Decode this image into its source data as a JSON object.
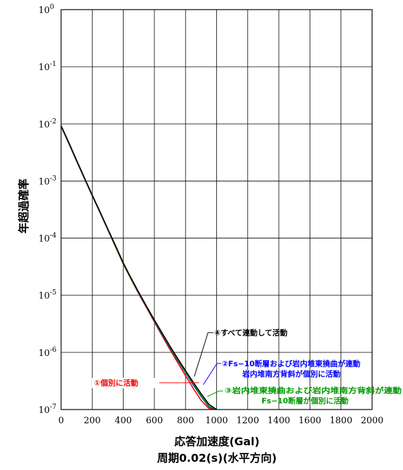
{
  "chart_data": {
    "type": "line",
    "xlabel": "応答加速度(Gal)",
    "xlabel2": "周期0.02(s)(水平方向)",
    "ylabel": "年超過確率",
    "xlim": [
      0,
      2000
    ],
    "ylim": [
      1e-07,
      1
    ],
    "yscale": "log",
    "grid": true,
    "x_ticks": [
      "0",
      "200",
      "400",
      "600",
      "800",
      "1000",
      "1200",
      "1400",
      "1600",
      "1800",
      "2000"
    ],
    "y_ticks": [
      {
        "base": "10",
        "exp": "0"
      },
      {
        "base": "10",
        "exp": "-1"
      },
      {
        "base": "10",
        "exp": "-2"
      },
      {
        "base": "10",
        "exp": "-3"
      },
      {
        "base": "10",
        "exp": "-4"
      },
      {
        "base": "10",
        "exp": "-5"
      },
      {
        "base": "10",
        "exp": "-6"
      },
      {
        "base": "10",
        "exp": "-7"
      }
    ],
    "series": [
      {
        "color": "#ff0000",
        "x": [
          0,
          50,
          100,
          150,
          200,
          250,
          300,
          350,
          400,
          450,
          500,
          550,
          600,
          650,
          700,
          750,
          800,
          850,
          900,
          950,
          985
        ],
        "y": [
          0.009,
          0.0045,
          0.0022,
          0.0011,
          0.00055,
          0.00028,
          0.00014,
          7e-05,
          3.5e-05,
          1.9e-05,
          1.05e-05,
          6e-06,
          3.4e-06,
          1.95e-06,
          1.12e-06,
          6.6e-07,
          3.9e-07,
          2.35e-07,
          1.45e-07,
          1.05e-07,
          1e-07
        ]
      },
      {
        "color": "#0000ff",
        "x": [
          0,
          50,
          100,
          150,
          200,
          250,
          300,
          350,
          400,
          450,
          500,
          550,
          600,
          650,
          700,
          750,
          800,
          850,
          900,
          950,
          990
        ],
        "y": [
          0.0092,
          0.0046,
          0.00225,
          0.00112,
          0.00056,
          0.000285,
          0.000143,
          7.2e-05,
          3.6e-05,
          1.95e-05,
          1.08e-05,
          6.2e-06,
          3.55e-06,
          2.05e-06,
          1.2e-06,
          7.2e-07,
          4.4e-07,
          2.7e-07,
          1.7e-07,
          1.12e-07,
          1e-07
        ]
      },
      {
        "color": "#009900",
        "x": [
          0,
          50,
          100,
          150,
          200,
          250,
          300,
          350,
          400,
          450,
          500,
          550,
          600,
          650,
          700,
          750,
          800,
          850,
          900,
          950,
          995
        ],
        "y": [
          0.0092,
          0.0046,
          0.00225,
          0.00112,
          0.00056,
          0.000285,
          0.000143,
          7.2e-05,
          3.6e-05,
          1.95e-05,
          1.09e-05,
          6.25e-06,
          3.6e-06,
          2.1e-06,
          1.23e-06,
          7.4e-07,
          4.5e-07,
          2.8e-07,
          1.75e-07,
          1.15e-07,
          1e-07
        ]
      },
      {
        "color": "#000000",
        "x": [
          0,
          50,
          100,
          150,
          200,
          250,
          300,
          350,
          400,
          450,
          500,
          550,
          600,
          650,
          700,
          750,
          800,
          850,
          900,
          950,
          1000
        ],
        "y": [
          0.0093,
          0.0047,
          0.0023,
          0.00114,
          0.00057,
          0.00029,
          0.000146,
          7.4e-05,
          3.7e-05,
          2e-05,
          1.12e-05,
          6.4e-06,
          3.7e-06,
          2.18e-06,
          1.29e-06,
          7.8e-07,
          4.8e-07,
          3e-07,
          1.9e-07,
          1.24e-07,
          1e-07
        ]
      }
    ],
    "annotations": [
      {
        "lines": [
          "④すべて連動して活動"
        ],
        "color": "#000000"
      },
      {
        "lines": [
          "②Fs−10断層および岩内堆東撓曲が連動",
          "岩内堆南方背斜が個別に活動"
        ],
        "color": "#0000ff"
      },
      {
        "lines": [
          "③岩内堆東撓曲および岩内堆南方背斜が連動",
          "Fs−10断層が個別に活動"
        ],
        "color": "#009900"
      },
      {
        "lines": [
          "①個別に活動"
        ],
        "color": "#ff0000"
      }
    ]
  }
}
